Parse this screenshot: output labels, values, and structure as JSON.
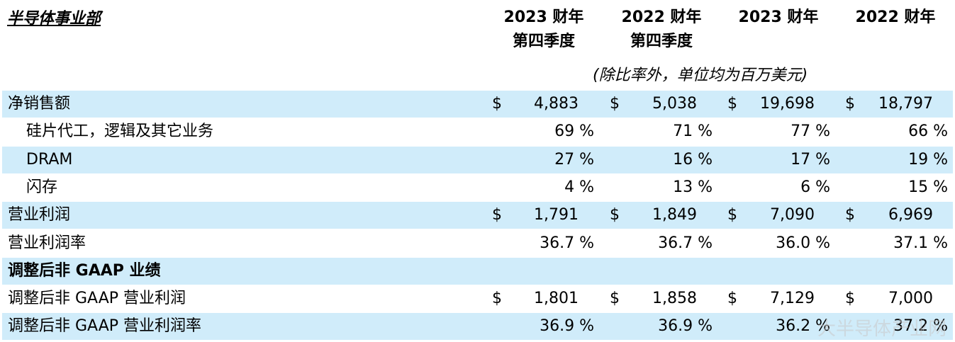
{
  "title": "半导体事业部",
  "columns": [
    {
      "line1": "2023 财年",
      "line2": "第四季度"
    },
    {
      "line1": "2022 财年",
      "line2": "第四季度"
    },
    {
      "line1": "2023 财年",
      "line2": ""
    },
    {
      "line1": "2022 财年",
      "line2": ""
    }
  ],
  "unit_note": "(除比率外，单位均为百万美元)",
  "rows": [
    {
      "label": "净销售额",
      "indent": false,
      "bold": false,
      "shade": true,
      "kind": "money",
      "dollar": "$",
      "values": [
        "4,883",
        "5,038",
        "19,698",
        "18,797"
      ]
    },
    {
      "label": "硅片代工，逻辑及其它业务",
      "indent": true,
      "bold": false,
      "shade": false,
      "kind": "pct",
      "dollar": "",
      "values": [
        "69 %",
        "71 %",
        "77 %",
        "66 %"
      ]
    },
    {
      "label": "DRAM",
      "indent": true,
      "bold": false,
      "shade": true,
      "kind": "pct",
      "dollar": "",
      "values": [
        "27 %",
        "16 %",
        "17 %",
        "19 %"
      ]
    },
    {
      "label": "闪存",
      "indent": true,
      "bold": false,
      "shade": false,
      "kind": "pct",
      "dollar": "",
      "values": [
        "4 %",
        "13 %",
        "6 %",
        "15 %"
      ]
    },
    {
      "label": "营业利润",
      "indent": false,
      "bold": false,
      "shade": true,
      "kind": "money",
      "dollar": "$",
      "values": [
        "1,791",
        "1,849",
        "7,090",
        "6,969"
      ]
    },
    {
      "label": "营业利润率",
      "indent": false,
      "bold": false,
      "shade": false,
      "kind": "pct",
      "dollar": "",
      "values": [
        "36.7 %",
        "36.7 %",
        "36.0 %",
        "37.1 %"
      ]
    },
    {
      "label": "调整后非 GAAP 业绩",
      "indent": false,
      "bold": true,
      "shade": true,
      "kind": "none",
      "dollar": "",
      "values": [
        "",
        "",
        "",
        ""
      ]
    },
    {
      "label": "调整后非 GAAP 营业利润",
      "indent": false,
      "bold": false,
      "shade": false,
      "kind": "money",
      "dollar": "$",
      "values": [
        "1,801",
        "1,858",
        "7,129",
        "7,000"
      ]
    },
    {
      "label": "调整后非 GAAP 营业利润率",
      "indent": false,
      "bold": false,
      "shade": true,
      "kind": "pct",
      "dollar": "",
      "values": [
        "36.9 %",
        "36.9 %",
        "36.2 %",
        "37.2 %"
      ]
    }
  ],
  "watermark": "大半导体产业网"
}
